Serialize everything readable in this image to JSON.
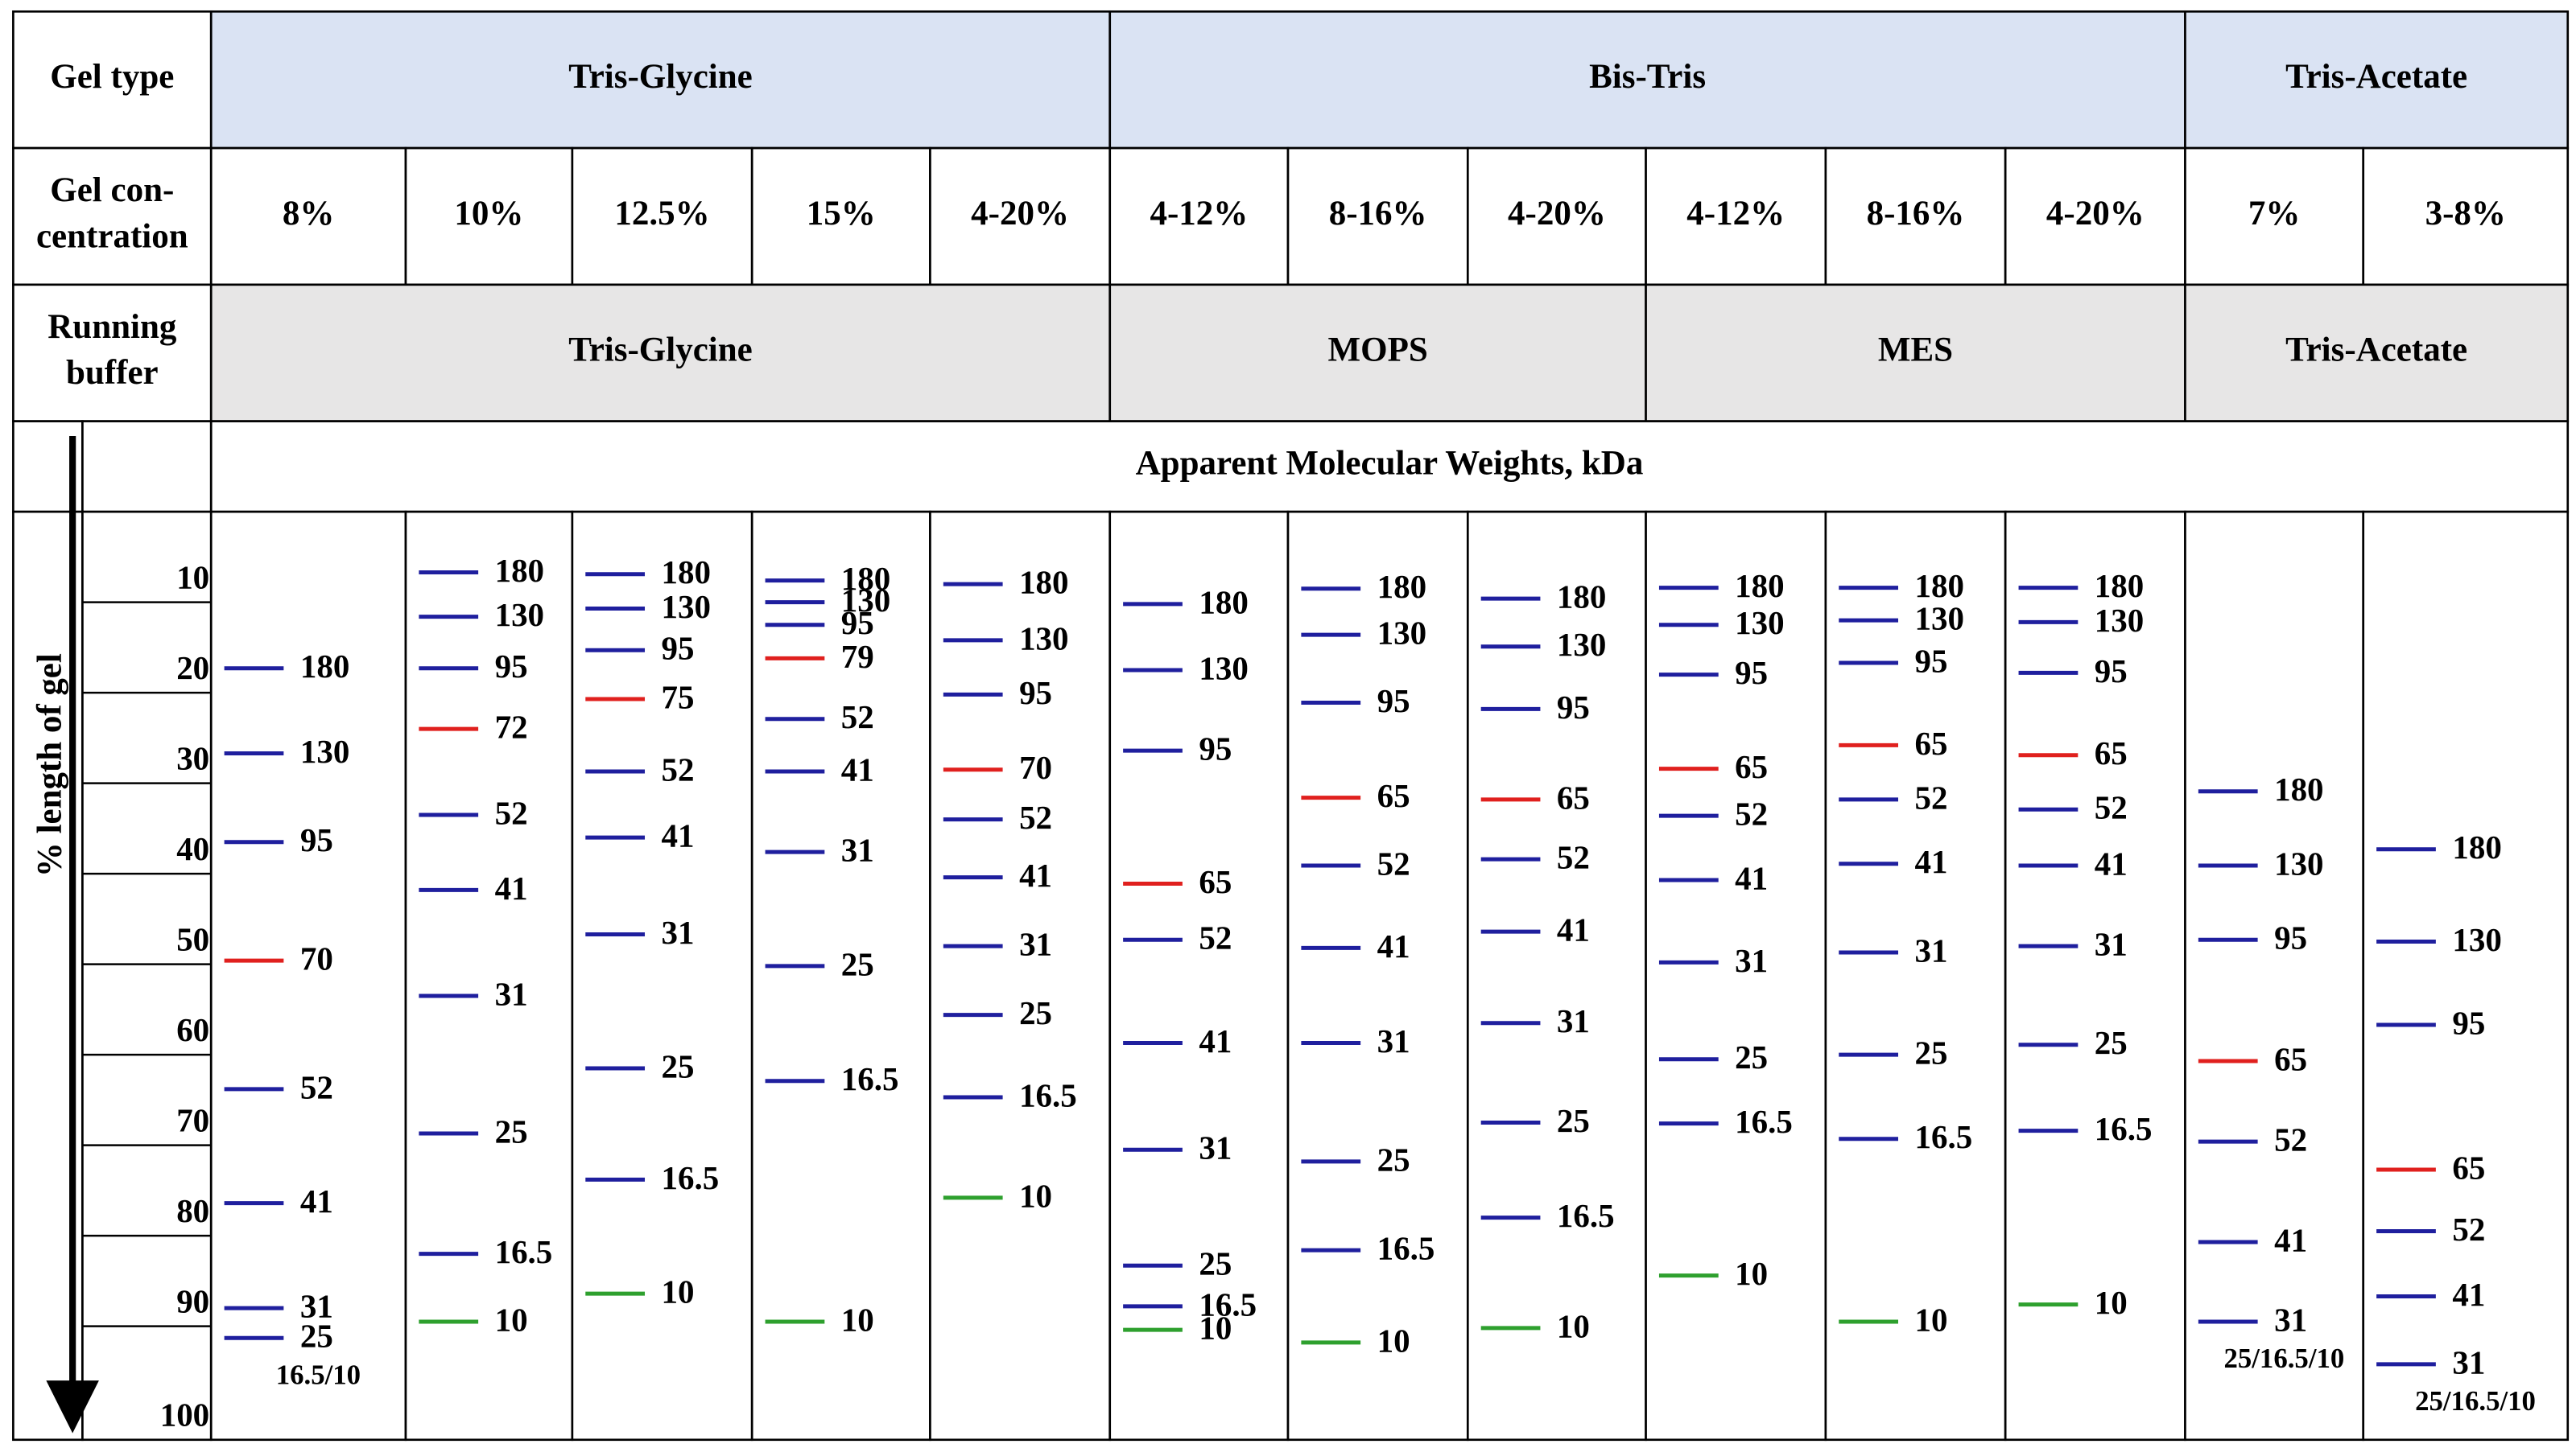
{
  "table": {
    "gel_type_label": "Gel type",
    "gel_types": [
      "Tris-Glycine",
      "Bis-Tris",
      "Tris-Acetate"
    ],
    "concentration_label": [
      "Gel con-",
      "centration"
    ],
    "concentrations": [
      "8%",
      "10%",
      "12.5%",
      "15%",
      "4-20%",
      "4-12%",
      "8-16%",
      "4-20%",
      "4-12%",
      "8-16%",
      "4-20%",
      "7%",
      "3-8%"
    ],
    "buffer_label": [
      "Running",
      "buffer"
    ],
    "buffers": [
      "Tris-Glycine",
      "MOPS",
      "MES",
      "Tris-Acetate"
    ],
    "mw_title": "Apparent Molecular Weights, kDa",
    "axis_label": "% length of gel",
    "axis_ticks": [
      10,
      20,
      30,
      40,
      50,
      60,
      70,
      80,
      90,
      100
    ],
    "lanes": [
      {
        "bands": [
          {
            "label": "180",
            "pos": 17.3,
            "color": "#1f1f9e"
          },
          {
            "label": "130",
            "pos": 26.7,
            "color": "#1f1f9e"
          },
          {
            "label": "95",
            "pos": 36.5,
            "color": "#1f1f9e"
          },
          {
            "label": "70",
            "pos": 49.6,
            "color": "#e0201e"
          },
          {
            "label": "52",
            "pos": 63.8,
            "color": "#1f1f9e"
          },
          {
            "label": "41",
            "pos": 76.4,
            "color": "#1f1f9e"
          },
          {
            "label": "31",
            "pos": 88.0,
            "color": "#1f1f9e"
          },
          {
            "label": "25",
            "pos": 91.3,
            "color": "#1f1f9e"
          }
        ],
        "note": "16.5/10"
      },
      {
        "bands": [
          {
            "label": "180",
            "pos": 6.7,
            "color": "#1f1f9e"
          },
          {
            "label": "130",
            "pos": 11.6,
            "color": "#1f1f9e"
          },
          {
            "label": "95",
            "pos": 17.3,
            "color": "#1f1f9e"
          },
          {
            "label": "72",
            "pos": 24.0,
            "color": "#e0201e"
          },
          {
            "label": "52",
            "pos": 33.5,
            "color": "#1f1f9e"
          },
          {
            "label": "41",
            "pos": 41.8,
            "color": "#1f1f9e"
          },
          {
            "label": "31",
            "pos": 53.5,
            "color": "#1f1f9e"
          },
          {
            "label": "25",
            "pos": 68.7,
            "color": "#1f1f9e"
          },
          {
            "label": "16.5",
            "pos": 82.0,
            "color": "#1f1f9e"
          },
          {
            "label": "10",
            "pos": 89.5,
            "color": "#2ea02e"
          }
        ]
      },
      {
        "bands": [
          {
            "label": "180",
            "pos": 6.9,
            "color": "#1f1f9e"
          },
          {
            "label": "130",
            "pos": 10.7,
            "color": "#1f1f9e"
          },
          {
            "label": "95",
            "pos": 15.3,
            "color": "#1f1f9e"
          },
          {
            "label": "75",
            "pos": 20.7,
            "color": "#e0201e"
          },
          {
            "label": "52",
            "pos": 28.7,
            "color": "#1f1f9e"
          },
          {
            "label": "41",
            "pos": 36.0,
            "color": "#1f1f9e"
          },
          {
            "label": "31",
            "pos": 46.7,
            "color": "#1f1f9e"
          },
          {
            "label": "25",
            "pos": 61.5,
            "color": "#1f1f9e"
          },
          {
            "label": "16.5",
            "pos": 73.8,
            "color": "#1f1f9e"
          },
          {
            "label": "10",
            "pos": 86.4,
            "color": "#2ea02e"
          }
        ]
      },
      {
        "bands": [
          {
            "label": "180",
            "pos": 7.6,
            "color": "#1f1f9e"
          },
          {
            "label": "130",
            "pos": 10.0,
            "color": "#1f1f9e"
          },
          {
            "label": "95",
            "pos": 12.5,
            "color": "#1f1f9e"
          },
          {
            "label": "79",
            "pos": 16.2,
            "color": "#e0201e"
          },
          {
            "label": "52",
            "pos": 22.9,
            "color": "#1f1f9e"
          },
          {
            "label": "41",
            "pos": 28.7,
            "color": "#1f1f9e"
          },
          {
            "label": "31",
            "pos": 37.6,
            "color": "#1f1f9e"
          },
          {
            "label": "25",
            "pos": 50.2,
            "color": "#1f1f9e"
          },
          {
            "label": "16.5",
            "pos": 62.9,
            "color": "#1f1f9e"
          },
          {
            "label": "10",
            "pos": 89.5,
            "color": "#2ea02e"
          }
        ]
      },
      {
        "bands": [
          {
            "label": "180",
            "pos": 8.0,
            "color": "#1f1f9e"
          },
          {
            "label": "130",
            "pos": 14.2,
            "color": "#1f1f9e"
          },
          {
            "label": "95",
            "pos": 20.2,
            "color": "#1f1f9e"
          },
          {
            "label": "70",
            "pos": 28.5,
            "color": "#e0201e"
          },
          {
            "label": "52",
            "pos": 34.0,
            "color": "#1f1f9e"
          },
          {
            "label": "41",
            "pos": 40.4,
            "color": "#1f1f9e"
          },
          {
            "label": "31",
            "pos": 48.0,
            "color": "#1f1f9e"
          },
          {
            "label": "25",
            "pos": 55.6,
            "color": "#1f1f9e"
          },
          {
            "label": "16.5",
            "pos": 64.7,
            "color": "#1f1f9e"
          },
          {
            "label": "10",
            "pos": 75.8,
            "color": "#2ea02e"
          }
        ]
      },
      {
        "bands": [
          {
            "label": "180",
            "pos": 10.2,
            "color": "#1f1f9e"
          },
          {
            "label": "130",
            "pos": 17.5,
            "color": "#1f1f9e"
          },
          {
            "label": "95",
            "pos": 26.4,
            "color": "#1f1f9e"
          },
          {
            "label": "65",
            "pos": 41.1,
            "color": "#e0201e"
          },
          {
            "label": "52",
            "pos": 47.3,
            "color": "#1f1f9e"
          },
          {
            "label": "41",
            "pos": 58.7,
            "color": "#1f1f9e"
          },
          {
            "label": "31",
            "pos": 70.5,
            "color": "#1f1f9e"
          },
          {
            "label": "25",
            "pos": 83.3,
            "color": "#1f1f9e"
          },
          {
            "label": "16.5",
            "pos": 87.8,
            "color": "#1f1f9e"
          },
          {
            "label": "10",
            "pos": 90.4,
            "color": "#2ea02e"
          }
        ]
      },
      {
        "bands": [
          {
            "label": "180",
            "pos": 8.5,
            "color": "#1f1f9e"
          },
          {
            "label": "130",
            "pos": 13.6,
            "color": "#1f1f9e"
          },
          {
            "label": "95",
            "pos": 21.1,
            "color": "#1f1f9e"
          },
          {
            "label": "65",
            "pos": 31.6,
            "color": "#e0201e"
          },
          {
            "label": "52",
            "pos": 39.1,
            "color": "#1f1f9e"
          },
          {
            "label": "41",
            "pos": 48.2,
            "color": "#1f1f9e"
          },
          {
            "label": "31",
            "pos": 58.7,
            "color": "#1f1f9e"
          },
          {
            "label": "25",
            "pos": 71.8,
            "color": "#1f1f9e"
          },
          {
            "label": "16.5",
            "pos": 81.6,
            "color": "#1f1f9e"
          },
          {
            "label": "10",
            "pos": 91.8,
            "color": "#2ea02e"
          }
        ]
      },
      {
        "bands": [
          {
            "label": "180",
            "pos": 9.6,
            "color": "#1f1f9e"
          },
          {
            "label": "130",
            "pos": 14.9,
            "color": "#1f1f9e"
          },
          {
            "label": "95",
            "pos": 21.8,
            "color": "#1f1f9e"
          },
          {
            "label": "65",
            "pos": 31.8,
            "color": "#e0201e"
          },
          {
            "label": "52",
            "pos": 38.4,
            "color": "#1f1f9e"
          },
          {
            "label": "41",
            "pos": 46.4,
            "color": "#1f1f9e"
          },
          {
            "label": "31",
            "pos": 56.5,
            "color": "#1f1f9e"
          },
          {
            "label": "25",
            "pos": 67.5,
            "color": "#1f1f9e"
          },
          {
            "label": "16.5",
            "pos": 78.0,
            "color": "#1f1f9e"
          },
          {
            "label": "10",
            "pos": 90.2,
            "color": "#2ea02e"
          }
        ]
      },
      {
        "bands": [
          {
            "label": "180",
            "pos": 8.4,
            "color": "#1f1f9e"
          },
          {
            "label": "130",
            "pos": 12.5,
            "color": "#1f1f9e"
          },
          {
            "label": "95",
            "pos": 18.0,
            "color": "#1f1f9e"
          },
          {
            "label": "65",
            "pos": 28.4,
            "color": "#e0201e"
          },
          {
            "label": "52",
            "pos": 33.6,
            "color": "#1f1f9e"
          },
          {
            "label": "41",
            "pos": 40.7,
            "color": "#1f1f9e"
          },
          {
            "label": "31",
            "pos": 49.8,
            "color": "#1f1f9e"
          },
          {
            "label": "25",
            "pos": 60.5,
            "color": "#1f1f9e"
          },
          {
            "label": "16.5",
            "pos": 67.6,
            "color": "#1f1f9e"
          },
          {
            "label": "10",
            "pos": 84.4,
            "color": "#2ea02e"
          }
        ]
      },
      {
        "bands": [
          {
            "label": "180",
            "pos": 8.4,
            "color": "#1f1f9e"
          },
          {
            "label": "130",
            "pos": 12.0,
            "color": "#1f1f9e"
          },
          {
            "label": "95",
            "pos": 16.7,
            "color": "#1f1f9e"
          },
          {
            "label": "65",
            "pos": 25.8,
            "color": "#e0201e"
          },
          {
            "label": "52",
            "pos": 31.8,
            "color": "#1f1f9e"
          },
          {
            "label": "41",
            "pos": 38.9,
            "color": "#1f1f9e"
          },
          {
            "label": "31",
            "pos": 48.7,
            "color": "#1f1f9e"
          },
          {
            "label": "25",
            "pos": 60.0,
            "color": "#1f1f9e"
          },
          {
            "label": "16.5",
            "pos": 69.3,
            "color": "#1f1f9e"
          },
          {
            "label": "10",
            "pos": 89.5,
            "color": "#2ea02e"
          }
        ]
      },
      {
        "bands": [
          {
            "label": "180",
            "pos": 8.4,
            "color": "#1f1f9e"
          },
          {
            "label": "130",
            "pos": 12.2,
            "color": "#1f1f9e"
          },
          {
            "label": "95",
            "pos": 17.8,
            "color": "#1f1f9e"
          },
          {
            "label": "65",
            "pos": 26.9,
            "color": "#e0201e"
          },
          {
            "label": "52",
            "pos": 32.9,
            "color": "#1f1f9e"
          },
          {
            "label": "41",
            "pos": 39.1,
            "color": "#1f1f9e"
          },
          {
            "label": "31",
            "pos": 48.0,
            "color": "#1f1f9e"
          },
          {
            "label": "25",
            "pos": 58.9,
            "color": "#1f1f9e"
          },
          {
            "label": "16.5",
            "pos": 68.4,
            "color": "#1f1f9e"
          },
          {
            "label": "10",
            "pos": 87.6,
            "color": "#2ea02e"
          }
        ]
      },
      {
        "bands": [
          {
            "label": "180",
            "pos": 30.9,
            "color": "#1f1f9e"
          },
          {
            "label": "130",
            "pos": 39.1,
            "color": "#1f1f9e"
          },
          {
            "label": "95",
            "pos": 47.3,
            "color": "#1f1f9e"
          },
          {
            "label": "65",
            "pos": 60.7,
            "color": "#e0201e"
          },
          {
            "label": "52",
            "pos": 69.6,
            "color": "#1f1f9e"
          },
          {
            "label": "41",
            "pos": 80.7,
            "color": "#1f1f9e"
          },
          {
            "label": "31",
            "pos": 89.5,
            "color": "#1f1f9e"
          }
        ],
        "note": "25/16.5/10"
      },
      {
        "bands": [
          {
            "label": "180",
            "pos": 37.3,
            "color": "#1f1f9e"
          },
          {
            "label": "130",
            "pos": 47.5,
            "color": "#1f1f9e"
          },
          {
            "label": "95",
            "pos": 56.7,
            "color": "#1f1f9e"
          },
          {
            "label": "65",
            "pos": 72.7,
            "color": "#e0201e"
          },
          {
            "label": "52",
            "pos": 79.5,
            "color": "#1f1f9e"
          },
          {
            "label": "41",
            "pos": 86.7,
            "color": "#1f1f9e"
          },
          {
            "label": "31",
            "pos": 94.2,
            "color": "#1f1f9e"
          }
        ],
        "note": "25/16.5/10"
      }
    ]
  }
}
